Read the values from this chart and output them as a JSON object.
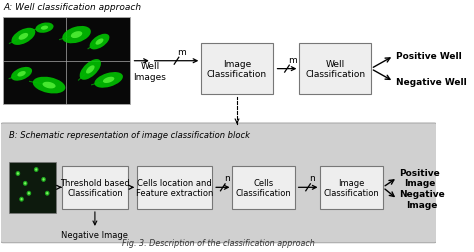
{
  "title_A": "A: Well classification approach",
  "title_B": "B: Schematic representation of image classification block",
  "caption": "Fig. 3. Description of the classification approach",
  "section_A": {
    "well_images_label": "Well\nImages",
    "box1_label": "Image\nClassification",
    "box2_label": "Well\nClassification",
    "arrow_label_m": "m",
    "output_positive": "Positive Well",
    "output_negative": "Negative Well"
  },
  "section_B": {
    "box1_label": "Threshold based\nClassification",
    "box2_label": "Cells location and\nFeature extraction",
    "box3_label": "Cells\nClassification",
    "box4_label": "Image\nClassification",
    "arrow_label_n": "n",
    "output_positive": "Positive\nImage",
    "output_negative": "Negative\nImage",
    "neg_image_label": "Negative Image"
  },
  "bg_white": "#ffffff",
  "box_face": "#eeeeee",
  "box_edge": "#777777",
  "secB_bg": "#d4d4d4"
}
